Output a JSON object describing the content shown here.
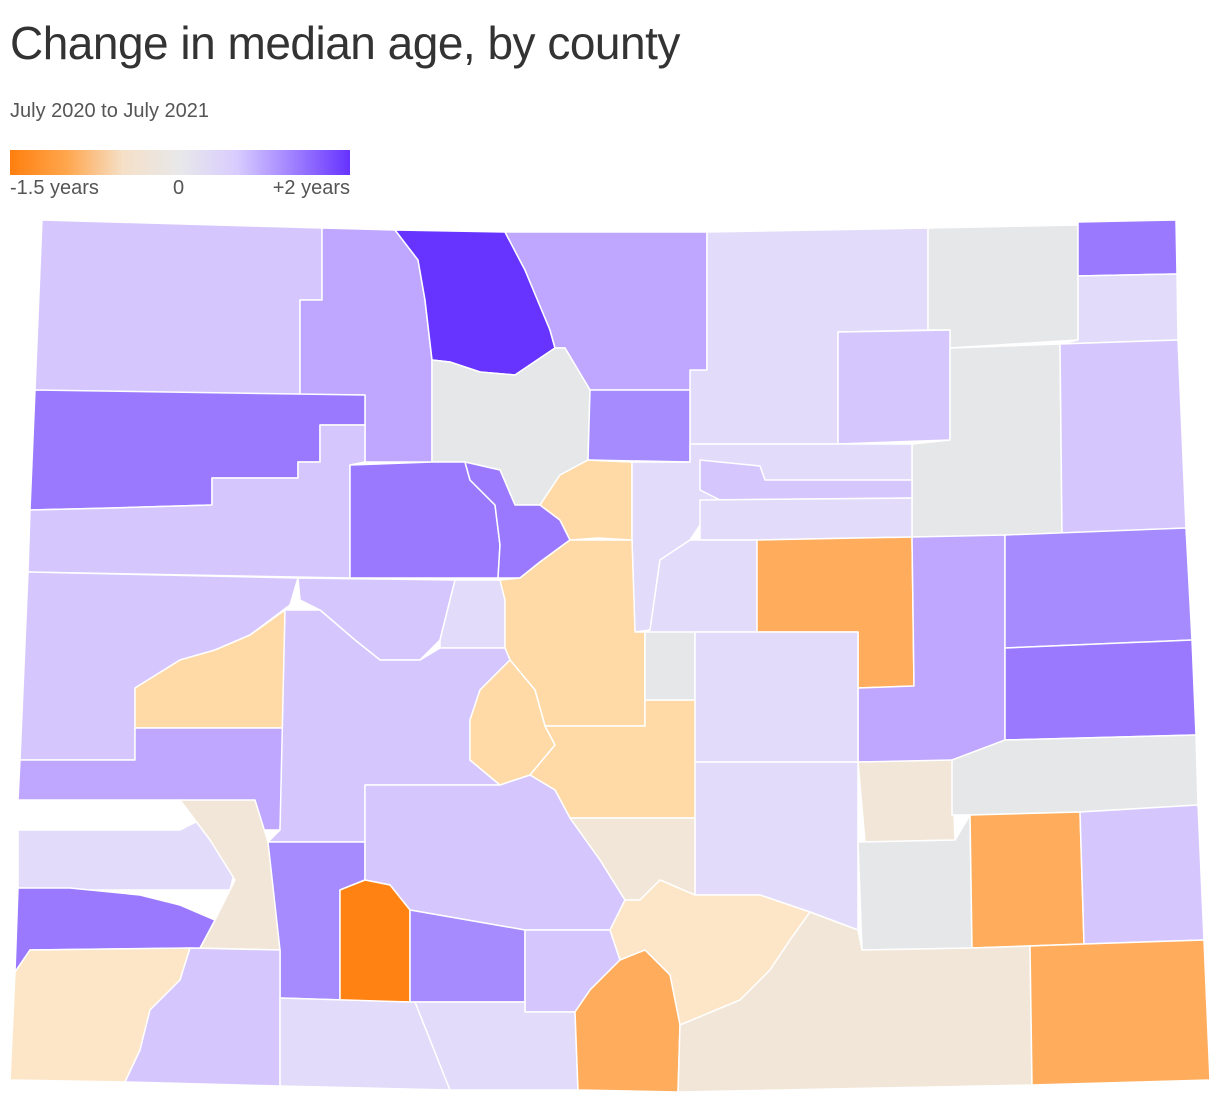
{
  "title": "Change in median age, by county",
  "subtitle": "July 2020 to July 2021",
  "legend": {
    "min_label": "-1.5 years",
    "mid_label": "0",
    "max_label": "+2 years",
    "colors": [
      "#ff7f0e",
      "#ffa64d",
      "#f5e0c8",
      "#e8e8ea",
      "#d8ccff",
      "#9f80ff",
      "#6633ff"
    ]
  },
  "map_palette": {
    "neg_strong": "#ff8212",
    "neg_medium": "#ffad5c",
    "neg_light": "#ffd9a6",
    "neg_faint": "#fde6c8",
    "near_zero": "#f2e6d8",
    "zero": "#e6e7e9",
    "pos_faint": "#e2dbfa",
    "pos_light": "#d6c6fe",
    "pos_medium": "#bfa7ff",
    "pos_strong": "#a68bff",
    "pos_stronger": "#9b79ff",
    "pos_max": "#6633ff"
  }
}
